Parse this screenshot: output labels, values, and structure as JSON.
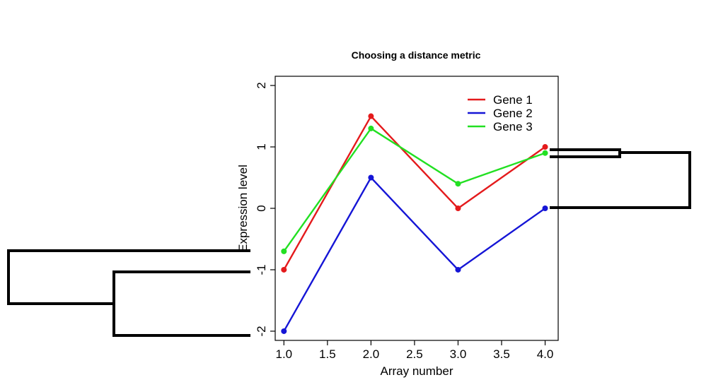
{
  "chart_data": {
    "type": "line",
    "title": "Choosing a distance metric",
    "xlabel": "Array number",
    "ylabel": "Expression level",
    "x": [
      1,
      2,
      3,
      4
    ],
    "xlim": [
      0.9,
      4.15
    ],
    "ylim": [
      -2.15,
      2.15
    ],
    "xticks": [
      "1.0",
      "1.5",
      "2.0",
      "2.5",
      "3.0",
      "3.5",
      "4.0"
    ],
    "yticks": [
      "-2",
      "-1",
      "0",
      "1",
      "2"
    ],
    "grid": false,
    "legend_position": "top-right",
    "series": [
      {
        "name": "Gene 1",
        "color": "#e41a1c",
        "values": [
          -1,
          1.5,
          0,
          1
        ]
      },
      {
        "name": "Gene 2",
        "color": "#1515d6",
        "values": [
          -2,
          0.5,
          -1,
          0
        ]
      },
      {
        "name": "Gene 3",
        "color": "#22e022",
        "values": [
          -0.7,
          1.3,
          0.4,
          0.9
        ]
      }
    ],
    "annotations": [
      "dendrogram-left",
      "dendrogram-right"
    ]
  }
}
